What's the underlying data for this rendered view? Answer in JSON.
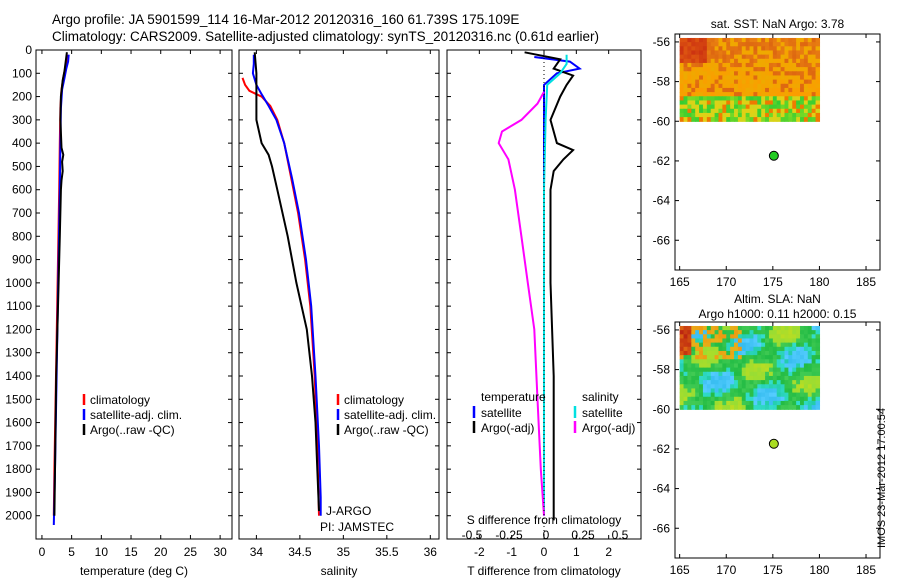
{
  "header": {
    "title_line1": "Argo profile: JA 5901599_114 16-Mar-2012 20120316_160 61.739S 175.109E",
    "title_line2": "Climatology: CARS2009. Satellite-adjusted climatology: synTS_20120316.nc (0.61d earlier)"
  },
  "side_note": "IMOS 23-Mar-2012 17:00:54",
  "colors": {
    "climatology": "#ff0000",
    "satellite": "#0000ff",
    "argo": "#000000",
    "satellite_cyan": "#00e0e0",
    "argo_adj_magenta": "#ff00ff",
    "float_marker_sst": "#22cc22",
    "float_marker_sla": "#aadd22"
  },
  "chart_data": [
    {
      "id": "temperature",
      "type": "line",
      "xlabel": "temperature (deg C)",
      "ylabel": "",
      "xlim": [
        -1,
        32
      ],
      "ylim": [
        2100,
        0
      ],
      "xticks": [
        0,
        5,
        10,
        15,
        20,
        25,
        30
      ],
      "yticks": [
        0,
        100,
        200,
        300,
        400,
        500,
        600,
        700,
        800,
        900,
        1000,
        1100,
        1200,
        1300,
        1400,
        1500,
        1600,
        1700,
        1800,
        1900,
        2000
      ],
      "legend": {
        "position": "lower-center",
        "entries": [
          "climatology",
          "satellite-adj. clim.",
          "Argo(..raw -QC)"
        ]
      },
      "series": [
        {
          "name": "climatology",
          "color": "#ff0000",
          "points": [
            [
              4.3,
              20
            ],
            [
              4.2,
              50
            ],
            [
              3.9,
              80
            ],
            [
              3.6,
              120
            ],
            [
              3.3,
              170
            ],
            [
              3.1,
              250
            ],
            [
              3.0,
              400
            ],
            [
              2.9,
              600
            ],
            [
              2.7,
              900
            ],
            [
              2.5,
              1200
            ],
            [
              2.3,
              1500
            ],
            [
              2.1,
              1800
            ],
            [
              2.0,
              2000
            ]
          ]
        },
        {
          "name": "satellite-adj. clim.",
          "color": "#0000ff",
          "points": [
            [
              4.5,
              20
            ],
            [
              4.4,
              50
            ],
            [
              4.1,
              80
            ],
            [
              3.8,
              120
            ],
            [
              3.4,
              170
            ],
            [
              3.2,
              250
            ],
            [
              3.1,
              400
            ],
            [
              3.0,
              600
            ],
            [
              2.8,
              900
            ],
            [
              2.6,
              1200
            ],
            [
              2.4,
              1500
            ],
            [
              2.2,
              1800
            ],
            [
              2.0,
              2040
            ]
          ]
        },
        {
          "name": "Argo(..raw -QC)",
          "color": "#000000",
          "points": [
            [
              4.2,
              10
            ],
            [
              4.0,
              50
            ],
            [
              3.8,
              90
            ],
            [
              3.5,
              130
            ],
            [
              3.2,
              200
            ],
            [
              3.1,
              300
            ],
            [
              3.3,
              420
            ],
            [
              3.6,
              450
            ],
            [
              3.4,
              480
            ],
            [
              3.5,
              520
            ],
            [
              3.3,
              560
            ],
            [
              3.2,
              600
            ],
            [
              3.0,
              800
            ],
            [
              2.8,
              1000
            ],
            [
              2.6,
              1200
            ],
            [
              2.4,
              1400
            ],
            [
              2.3,
              1600
            ],
            [
              2.2,
              1800
            ],
            [
              2.1,
              2000
            ]
          ]
        }
      ]
    },
    {
      "id": "salinity",
      "type": "line",
      "xlabel": "salinity",
      "ylabel": "",
      "xlim": [
        33.8,
        36.1
      ],
      "ylim": [
        2100,
        0
      ],
      "xticks": [
        34,
        34.5,
        35,
        35.5,
        36
      ],
      "xtick_labels": [
        "34",
        "34.5",
        "35",
        "35.5",
        "36"
      ],
      "legend": {
        "position": "lower-center",
        "entries": [
          "climatology",
          "satellite-adj. clim.",
          "Argo(..raw -QC)"
        ]
      },
      "annotations": [
        "J-ARGO",
        "PI: JAMSTEC"
      ],
      "series": [
        {
          "name": "climatology",
          "color": "#ff0000",
          "points": [
            [
              33.84,
              120
            ],
            [
              33.87,
              150
            ],
            [
              33.92,
              175
            ],
            [
              34.0,
              190
            ],
            [
              34.06,
              200
            ],
            [
              34.16,
              240
            ],
            [
              34.24,
              300
            ],
            [
              34.32,
              400
            ],
            [
              34.4,
              550
            ],
            [
              34.48,
              700
            ],
            [
              34.56,
              900
            ],
            [
              34.62,
              1100
            ],
            [
              34.67,
              1400
            ],
            [
              34.7,
              1700
            ],
            [
              34.72,
              2000
            ]
          ]
        },
        {
          "name": "satellite-adj. clim.",
          "color": "#0000ff",
          "points": [
            [
              33.97,
              20
            ],
            [
              33.97,
              60
            ],
            [
              33.96,
              100
            ],
            [
              34.0,
              150
            ],
            [
              34.06,
              190
            ],
            [
              34.14,
              240
            ],
            [
              34.23,
              300
            ],
            [
              34.32,
              400
            ],
            [
              34.41,
              550
            ],
            [
              34.49,
              700
            ],
            [
              34.57,
              900
            ],
            [
              34.63,
              1100
            ],
            [
              34.68,
              1400
            ],
            [
              34.72,
              1700
            ],
            [
              34.74,
              1920
            ],
            [
              34.74,
              2000
            ]
          ]
        },
        {
          "name": "Argo(..raw -QC)",
          "color": "#000000",
          "points": [
            [
              33.98,
              10
            ],
            [
              34.0,
              100
            ],
            [
              34.0,
              200
            ],
            [
              34.0,
              300
            ],
            [
              34.06,
              400
            ],
            [
              34.14,
              450
            ],
            [
              34.18,
              500
            ],
            [
              34.24,
              600
            ],
            [
              34.36,
              800
            ],
            [
              34.46,
              1000
            ],
            [
              34.58,
              1200
            ],
            [
              34.64,
              1400
            ],
            [
              34.68,
              1600
            ],
            [
              34.7,
              1800
            ],
            [
              34.72,
              1980
            ]
          ]
        }
      ]
    },
    {
      "id": "difference",
      "type": "line",
      "xlabel": "T difference from climatology",
      "xlabel_top": "S difference from climatology",
      "ylabel": "",
      "xlim": [
        -3,
        3
      ],
      "ylim": [
        2100,
        0
      ],
      "xticks": [
        -2,
        -1,
        0,
        1,
        2
      ],
      "s_ticks": [
        -0.5,
        -0.25,
        0,
        0.25,
        0.5
      ],
      "s_tick_labels": [
        "-0.5",
        "-0.25",
        "0",
        "0.25",
        "0.5"
      ],
      "legend": {
        "position": "lower-center",
        "headers": [
          "temperature",
          "salinity"
        ],
        "entries": [
          "satellite",
          "Argo(-adj)",
          "satellite",
          "Argo(-adj)"
        ]
      },
      "series": [
        {
          "name": "satellite",
          "group": "temperature",
          "color": "#0000ff",
          "points": [
            [
              -0.3,
              30
            ],
            [
              0.8,
              50
            ],
            [
              1.1,
              80
            ],
            [
              0.4,
              100
            ],
            [
              0.0,
              150
            ],
            [
              0.0,
              300
            ],
            [
              0.0,
              600
            ],
            [
              0.0,
              900
            ],
            [
              0.0,
              1200
            ],
            [
              0.0,
              1600
            ],
            [
              0.0,
              2000
            ]
          ]
        },
        {
          "name": "Argo(-adj)",
          "group": "temperature",
          "color": "#000000",
          "points": [
            [
              -0.6,
              10
            ],
            [
              0.5,
              40
            ],
            [
              0.3,
              80
            ],
            [
              0.9,
              110
            ],
            [
              0.7,
              150
            ],
            [
              0.5,
              200
            ],
            [
              0.2,
              300
            ],
            [
              0.4,
              400
            ],
            [
              0.9,
              430
            ],
            [
              0.6,
              470
            ],
            [
              0.3,
              520
            ],
            [
              0.2,
              600
            ],
            [
              0.2,
              1000
            ],
            [
              0.3,
              1400
            ],
            [
              0.3,
              1800
            ],
            [
              0.3,
              2020
            ]
          ]
        },
        {
          "name": "satellite",
          "group": "salinity",
          "color": "#00e0e0",
          "points": [
            [
              0.7,
              20
            ],
            [
              0.7,
              60
            ],
            [
              0.5,
              100
            ],
            [
              0.1,
              150
            ],
            [
              0.05,
              300
            ],
            [
              0.0,
              600
            ],
            [
              0.0,
              1000
            ],
            [
              0.0,
              1500
            ],
            [
              0.0,
              2000
            ]
          ]
        },
        {
          "name": "Argo(-adj)",
          "group": "salinity",
          "color": "#ff00ff",
          "points": [
            [
              0.0,
              180
            ],
            [
              -0.2,
              230
            ],
            [
              -0.7,
              300
            ],
            [
              -1.3,
              350
            ],
            [
              -1.4,
              400
            ],
            [
              -1.1,
              470
            ],
            [
              -0.9,
              600
            ],
            [
              -0.7,
              800
            ],
            [
              -0.5,
              1000
            ],
            [
              -0.3,
              1200
            ],
            [
              -0.2,
              1500
            ],
            [
              -0.1,
              1800
            ],
            [
              0.0,
              2000
            ]
          ]
        }
      ]
    },
    {
      "id": "sst-map",
      "type": "heatmap",
      "title": "sat. SST: NaN Argo: 3.78",
      "xlim": [
        164.5,
        186.5
      ],
      "ylim": [
        -67.5,
        -55.6
      ],
      "xticks": [
        165,
        170,
        175,
        180,
        185
      ],
      "yticks": [
        -56,
        -58,
        -60,
        -62,
        -64,
        -66
      ],
      "field_extent": {
        "lon": [
          165,
          180
        ],
        "lat": [
          -60,
          -55.8
        ]
      },
      "float_position": {
        "lon": 175.109,
        "lat": -61.739
      }
    },
    {
      "id": "sla-map",
      "type": "heatmap",
      "title": "Altim. SLA: NaN",
      "subtitle": "Argo h1000: 0.11 h2000: 0.15",
      "xlim": [
        164.5,
        186.5
      ],
      "ylim": [
        -67.5,
        -55.6
      ],
      "xticks": [
        165,
        170,
        175,
        180,
        185
      ],
      "yticks": [
        -56,
        -58,
        -60,
        -62,
        -64,
        -66
      ],
      "field_extent": {
        "lon": [
          165,
          180
        ],
        "lat": [
          -60,
          -55.8
        ]
      },
      "float_position": {
        "lon": 175.109,
        "lat": -61.739
      }
    }
  ]
}
